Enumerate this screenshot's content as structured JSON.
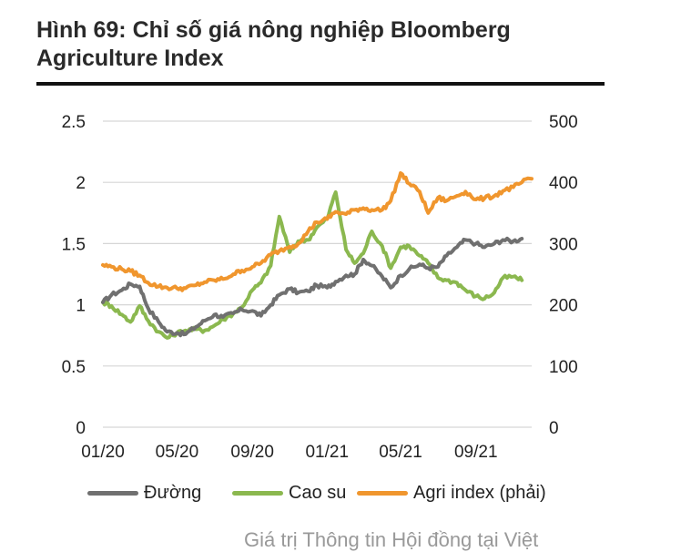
{
  "header": {
    "title_line1": "Hình 69: Chỉ số giá nông nghiệp Bloomberg",
    "title_line2": "Agriculture Index"
  },
  "colors": {
    "duong": "#707070",
    "caosu": "#8bb84f",
    "agri": "#f0962e",
    "grid": "#d6d6d6",
    "rule": "#111111"
  },
  "chart_data": {
    "type": "line",
    "x_tick_labels": [
      "01/20",
      "05/20",
      "09/20",
      "01/21",
      "05/21",
      "09/21"
    ],
    "x_range": [
      "2020-01",
      "2021-12"
    ],
    "y_left": {
      "ticks": [
        "2.5",
        "2",
        "1.5",
        "1",
        "0.5",
        "0"
      ],
      "range": [
        0,
        2.5
      ]
    },
    "y_right": {
      "ticks": [
        "500",
        "400",
        "300",
        "200",
        "100",
        "0"
      ],
      "range": [
        0,
        500
      ]
    },
    "grid": "horizontal",
    "legend_position": "bottom",
    "series": [
      {
        "name": "Đường",
        "axis": "left",
        "color": "#707070",
        "points": [
          [
            "2020-01-01",
            1.02
          ],
          [
            "2020-01-15",
            1.08
          ],
          [
            "2020-02-01",
            1.12
          ],
          [
            "2020-02-15",
            1.17
          ],
          [
            "2020-03-01",
            1.15
          ],
          [
            "2020-03-15",
            0.97
          ],
          [
            "2020-04-01",
            0.86
          ],
          [
            "2020-04-15",
            0.78
          ],
          [
            "2020-05-01",
            0.77
          ],
          [
            "2020-05-15",
            0.76
          ],
          [
            "2020-06-01",
            0.82
          ],
          [
            "2020-06-15",
            0.87
          ],
          [
            "2020-07-01",
            0.92
          ],
          [
            "2020-07-15",
            0.9
          ],
          [
            "2020-08-01",
            0.93
          ],
          [
            "2020-08-15",
            0.96
          ],
          [
            "2020-09-01",
            0.95
          ],
          [
            "2020-09-15",
            0.91
          ],
          [
            "2020-10-01",
            1.0
          ],
          [
            "2020-10-15",
            1.08
          ],
          [
            "2020-11-01",
            1.13
          ],
          [
            "2020-11-15",
            1.1
          ],
          [
            "2020-12-01",
            1.11
          ],
          [
            "2020-12-15",
            1.16
          ],
          [
            "2021-01-01",
            1.14
          ],
          [
            "2021-01-15",
            1.19
          ],
          [
            "2021-02-01",
            1.24
          ],
          [
            "2021-02-15",
            1.25
          ],
          [
            "2021-03-01",
            1.37
          ],
          [
            "2021-03-15",
            1.32
          ],
          [
            "2021-04-01",
            1.23
          ],
          [
            "2021-04-15",
            1.14
          ],
          [
            "2021-05-01",
            1.24
          ],
          [
            "2021-05-15",
            1.29
          ],
          [
            "2021-06-01",
            1.33
          ],
          [
            "2021-06-15",
            1.3
          ],
          [
            "2021-07-01",
            1.31
          ],
          [
            "2021-07-15",
            1.4
          ],
          [
            "2021-08-01",
            1.47
          ],
          [
            "2021-08-15",
            1.53
          ],
          [
            "2021-09-01",
            1.5
          ],
          [
            "2021-09-15",
            1.47
          ],
          [
            "2021-10-01",
            1.5
          ],
          [
            "2021-10-15",
            1.53
          ],
          [
            "2021-11-01",
            1.52
          ],
          [
            "2021-11-15",
            1.54
          ]
        ]
      },
      {
        "name": "Cao su",
        "axis": "left",
        "color": "#8bb84f",
        "points": [
          [
            "2020-01-01",
            1.02
          ],
          [
            "2020-01-15",
            0.99
          ],
          [
            "2020-02-01",
            0.92
          ],
          [
            "2020-02-15",
            0.86
          ],
          [
            "2020-03-01",
            0.99
          ],
          [
            "2020-03-15",
            0.87
          ],
          [
            "2020-04-01",
            0.78
          ],
          [
            "2020-04-15",
            0.73
          ],
          [
            "2020-05-01",
            0.77
          ],
          [
            "2020-05-15",
            0.79
          ],
          [
            "2020-06-01",
            0.8
          ],
          [
            "2020-06-15",
            0.79
          ],
          [
            "2020-07-01",
            0.83
          ],
          [
            "2020-07-15",
            0.88
          ],
          [
            "2020-08-01",
            0.93
          ],
          [
            "2020-08-15",
            0.98
          ],
          [
            "2020-09-01",
            1.12
          ],
          [
            "2020-09-15",
            1.18
          ],
          [
            "2020-10-01",
            1.32
          ],
          [
            "2020-10-15",
            1.72
          ],
          [
            "2020-11-01",
            1.43
          ],
          [
            "2020-11-15",
            1.52
          ],
          [
            "2020-12-01",
            1.53
          ],
          [
            "2020-12-15",
            1.63
          ],
          [
            "2021-01-01",
            1.7
          ],
          [
            "2021-01-15",
            1.92
          ],
          [
            "2021-02-01",
            1.45
          ],
          [
            "2021-02-15",
            1.34
          ],
          [
            "2021-03-01",
            1.42
          ],
          [
            "2021-03-15",
            1.6
          ],
          [
            "2021-04-01",
            1.48
          ],
          [
            "2021-04-15",
            1.3
          ],
          [
            "2021-05-01",
            1.47
          ],
          [
            "2021-05-15",
            1.48
          ],
          [
            "2021-06-01",
            1.4
          ],
          [
            "2021-06-15",
            1.34
          ],
          [
            "2021-07-01",
            1.22
          ],
          [
            "2021-07-15",
            1.2
          ],
          [
            "2021-08-01",
            1.18
          ],
          [
            "2021-08-15",
            1.12
          ],
          [
            "2021-09-01",
            1.07
          ],
          [
            "2021-09-15",
            1.05
          ],
          [
            "2021-10-01",
            1.1
          ],
          [
            "2021-10-15",
            1.22
          ],
          [
            "2021-11-01",
            1.23
          ],
          [
            "2021-11-15",
            1.2
          ]
        ]
      },
      {
        "name": "Agri index (phải)",
        "axis": "right",
        "color": "#f0962e",
        "points": [
          [
            "2020-01-01",
            265
          ],
          [
            "2020-01-15",
            262
          ],
          [
            "2020-02-01",
            258
          ],
          [
            "2020-02-15",
            255
          ],
          [
            "2020-03-01",
            248
          ],
          [
            "2020-03-15",
            236
          ],
          [
            "2020-04-01",
            230
          ],
          [
            "2020-04-15",
            228
          ],
          [
            "2020-05-01",
            227
          ],
          [
            "2020-05-15",
            227
          ],
          [
            "2020-06-01",
            232
          ],
          [
            "2020-06-15",
            237
          ],
          [
            "2020-07-01",
            240
          ],
          [
            "2020-07-15",
            242
          ],
          [
            "2020-08-01",
            250
          ],
          [
            "2020-08-15",
            256
          ],
          [
            "2020-09-01",
            262
          ],
          [
            "2020-09-15",
            268
          ],
          [
            "2020-10-01",
            282
          ],
          [
            "2020-10-15",
            288
          ],
          [
            "2020-11-01",
            295
          ],
          [
            "2020-11-15",
            300
          ],
          [
            "2020-12-01",
            320
          ],
          [
            "2020-12-15",
            335
          ],
          [
            "2021-01-01",
            340
          ],
          [
            "2021-01-15",
            352
          ],
          [
            "2021-02-01",
            348
          ],
          [
            "2021-02-15",
            355
          ],
          [
            "2021-03-01",
            358
          ],
          [
            "2021-03-15",
            355
          ],
          [
            "2021-04-01",
            355
          ],
          [
            "2021-04-15",
            370
          ],
          [
            "2021-05-01",
            415
          ],
          [
            "2021-05-15",
            398
          ],
          [
            "2021-06-01",
            385
          ],
          [
            "2021-06-15",
            350
          ],
          [
            "2021-07-01",
            375
          ],
          [
            "2021-07-15",
            370
          ],
          [
            "2021-08-01",
            378
          ],
          [
            "2021-08-15",
            385
          ],
          [
            "2021-09-01",
            372
          ],
          [
            "2021-09-15",
            374
          ],
          [
            "2021-10-01",
            378
          ],
          [
            "2021-10-15",
            386
          ],
          [
            "2021-11-01",
            392
          ],
          [
            "2021-11-15",
            400
          ],
          [
            "2021-12-01",
            406
          ]
        ]
      }
    ]
  },
  "source_note": "Giá trị Thông tin Hội đồng tại Việt"
}
